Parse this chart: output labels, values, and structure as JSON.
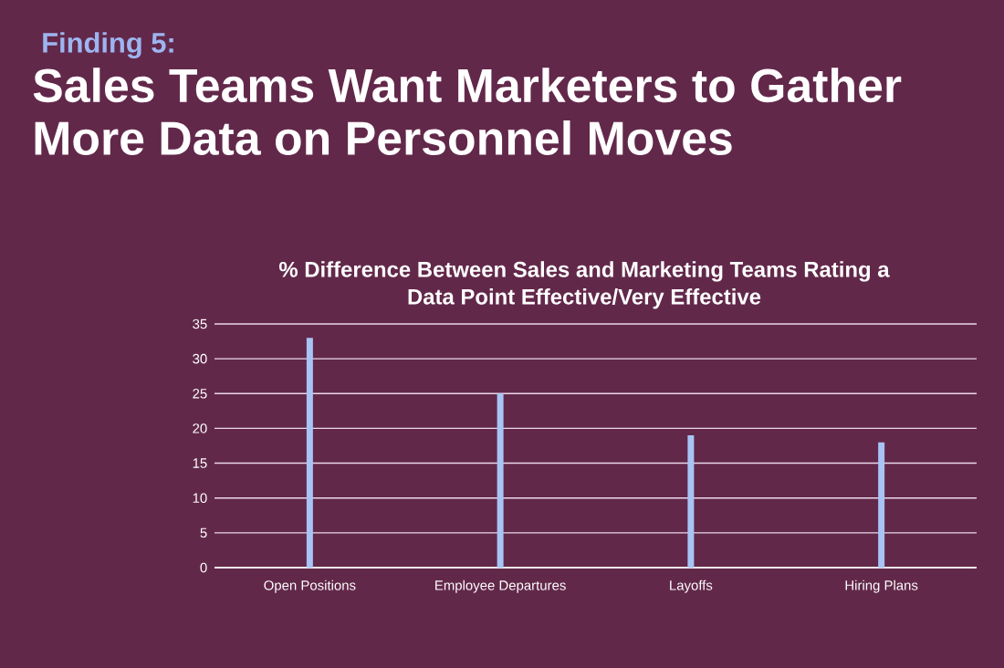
{
  "chart_data": {
    "type": "bar",
    "title": "Sales Teams Want Marketers to Gather More Data on Personnel Moves",
    "subtitle": "% Difference Between Sales and Marketing Teams Rating a Data Point Effective/Very Effective",
    "annotations": [
      "Finding 5:"
    ],
    "categories": [
      "Open Positions",
      "Employee Departures",
      "Layoffs",
      "Hiring Plans"
    ],
    "values": [
      33,
      25,
      19,
      18
    ],
    "color": "#a8c4f4",
    "ylim": [
      0,
      35
    ],
    "yticks": [
      0,
      5,
      10,
      15,
      20,
      25,
      30,
      35
    ],
    "grid": "y"
  }
}
